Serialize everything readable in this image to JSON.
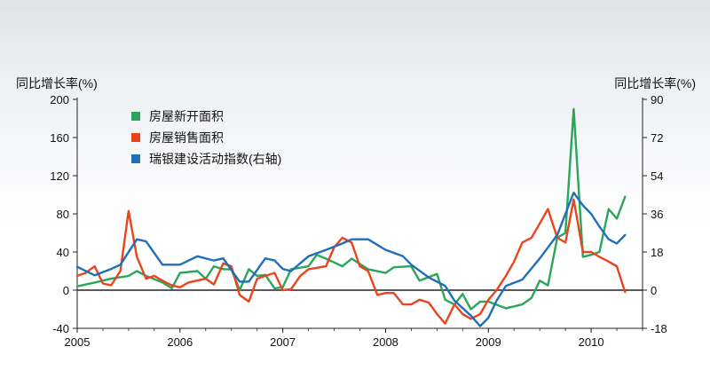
{
  "chart_data": {
    "type": "line",
    "left_axis_label": "同比增长率(%)",
    "right_axis_label": "同比增长率(%)",
    "left_ylim": [
      -40,
      200
    ],
    "left_yticks": [
      "200",
      "160",
      "120",
      "80",
      "40",
      "0",
      "-40"
    ],
    "right_ylim": [
      -18,
      90
    ],
    "right_yticks": [
      "90",
      "72",
      "54",
      "36",
      "18",
      "0",
      "-18"
    ],
    "x_range": [
      2005,
      2010.5
    ],
    "x_ticks": [
      {
        "value": 2005,
        "label": "2005"
      },
      {
        "value": 2006,
        "label": "2006"
      },
      {
        "value": 2007,
        "label": "2007"
      },
      {
        "value": 2008,
        "label": "2008"
      },
      {
        "value": 2009,
        "label": "2009"
      },
      {
        "value": 2010,
        "label": "2010"
      }
    ],
    "grid": false,
    "legend_position": "top-left",
    "series": [
      {
        "name": "房屋新开面积",
        "color": "#2aa55a",
        "axis": "left",
        "points": [
          [
            2005.0,
            4
          ],
          [
            2005.17,
            8
          ],
          [
            2005.33,
            12
          ],
          [
            2005.5,
            15
          ],
          [
            2005.58,
            20
          ],
          [
            2005.67,
            15
          ],
          [
            2005.83,
            8
          ],
          [
            2005.92,
            2
          ],
          [
            2006.0,
            18
          ],
          [
            2006.17,
            20
          ],
          [
            2006.25,
            12
          ],
          [
            2006.33,
            25
          ],
          [
            2006.42,
            22
          ],
          [
            2006.5,
            22
          ],
          [
            2006.58,
            0
          ],
          [
            2006.67,
            22
          ],
          [
            2006.75,
            15
          ],
          [
            2006.83,
            16
          ],
          [
            2006.92,
            2
          ],
          [
            2007.0,
            3
          ],
          [
            2007.08,
            22
          ],
          [
            2007.25,
            25
          ],
          [
            2007.33,
            37
          ],
          [
            2007.42,
            33
          ],
          [
            2007.58,
            25
          ],
          [
            2007.67,
            33
          ],
          [
            2007.83,
            22
          ],
          [
            2008.0,
            18
          ],
          [
            2008.08,
            24
          ],
          [
            2008.25,
            25
          ],
          [
            2008.33,
            10
          ],
          [
            2008.5,
            17
          ],
          [
            2008.58,
            -10
          ],
          [
            2008.67,
            -15
          ],
          [
            2008.75,
            -4
          ],
          [
            2008.83,
            -20
          ],
          [
            2008.92,
            -12
          ],
          [
            2009.0,
            -12
          ],
          [
            2009.17,
            -19
          ],
          [
            2009.25,
            -17
          ],
          [
            2009.33,
            -15
          ],
          [
            2009.42,
            -8
          ],
          [
            2009.5,
            10
          ],
          [
            2009.58,
            5
          ],
          [
            2009.67,
            55
          ],
          [
            2009.75,
            60
          ],
          [
            2009.83,
            190
          ],
          [
            2009.92,
            35
          ],
          [
            2010.0,
            37
          ],
          [
            2010.08,
            40
          ],
          [
            2010.17,
            85
          ],
          [
            2010.25,
            75
          ],
          [
            2010.33,
            98
          ]
        ]
      },
      {
        "name": "房屋销售面积",
        "color": "#e8441e",
        "axis": "left",
        "points": [
          [
            2005.0,
            15
          ],
          [
            2005.08,
            18
          ],
          [
            2005.17,
            25
          ],
          [
            2005.25,
            7
          ],
          [
            2005.33,
            5
          ],
          [
            2005.42,
            20
          ],
          [
            2005.5,
            83
          ],
          [
            2005.58,
            35
          ],
          [
            2005.67,
            12
          ],
          [
            2005.75,
            15
          ],
          [
            2005.83,
            10
          ],
          [
            2005.92,
            5
          ],
          [
            2006.0,
            3
          ],
          [
            2006.08,
            8
          ],
          [
            2006.25,
            12
          ],
          [
            2006.33,
            6
          ],
          [
            2006.42,
            28
          ],
          [
            2006.5,
            25
          ],
          [
            2006.58,
            -5
          ],
          [
            2006.67,
            -12
          ],
          [
            2006.75,
            12
          ],
          [
            2006.83,
            15
          ],
          [
            2006.92,
            18
          ],
          [
            2007.0,
            0
          ],
          [
            2007.08,
            1
          ],
          [
            2007.17,
            15
          ],
          [
            2007.25,
            22
          ],
          [
            2007.42,
            25
          ],
          [
            2007.5,
            45
          ],
          [
            2007.58,
            55
          ],
          [
            2007.67,
            50
          ],
          [
            2007.75,
            25
          ],
          [
            2007.83,
            20
          ],
          [
            2007.92,
            -5
          ],
          [
            2008.0,
            -3
          ],
          [
            2008.08,
            -3
          ],
          [
            2008.17,
            -15
          ],
          [
            2008.25,
            -15
          ],
          [
            2008.33,
            -10
          ],
          [
            2008.42,
            -13
          ],
          [
            2008.5,
            -25
          ],
          [
            2008.58,
            -35
          ],
          [
            2008.67,
            -15
          ],
          [
            2008.75,
            -25
          ],
          [
            2008.83,
            -30
          ],
          [
            2008.92,
            -25
          ],
          [
            2009.0,
            -10
          ],
          [
            2009.08,
            0
          ],
          [
            2009.17,
            15
          ],
          [
            2009.25,
            30
          ],
          [
            2009.33,
            50
          ],
          [
            2009.42,
            55
          ],
          [
            2009.5,
            70
          ],
          [
            2009.58,
            85
          ],
          [
            2009.67,
            55
          ],
          [
            2009.75,
            50
          ],
          [
            2009.83,
            95
          ],
          [
            2009.92,
            40
          ],
          [
            2010.0,
            40
          ],
          [
            2010.08,
            35
          ],
          [
            2010.17,
            30
          ],
          [
            2010.25,
            25
          ],
          [
            2010.33,
            -2
          ]
        ]
      },
      {
        "name": "瑞银建设活动指数(右轴)",
        "color": "#1f6fb8",
        "axis": "right",
        "points": [
          [
            2005.0,
            11
          ],
          [
            2005.17,
            7
          ],
          [
            2005.33,
            10
          ],
          [
            2005.42,
            12
          ],
          [
            2005.58,
            24
          ],
          [
            2005.67,
            23
          ],
          [
            2005.83,
            12
          ],
          [
            2006.0,
            12
          ],
          [
            2006.17,
            16
          ],
          [
            2006.33,
            14
          ],
          [
            2006.42,
            15
          ],
          [
            2006.58,
            4
          ],
          [
            2006.67,
            4
          ],
          [
            2006.83,
            15
          ],
          [
            2006.92,
            14
          ],
          [
            2007.0,
            10
          ],
          [
            2007.08,
            9
          ],
          [
            2007.25,
            16
          ],
          [
            2007.42,
            19
          ],
          [
            2007.58,
            22
          ],
          [
            2007.67,
            24
          ],
          [
            2007.83,
            24
          ],
          [
            2008.0,
            19
          ],
          [
            2008.17,
            16
          ],
          [
            2008.25,
            12
          ],
          [
            2008.42,
            6
          ],
          [
            2008.58,
            2
          ],
          [
            2008.67,
            -5
          ],
          [
            2008.83,
            -12
          ],
          [
            2008.92,
            -17
          ],
          [
            2009.0,
            -13
          ],
          [
            2009.08,
            -5
          ],
          [
            2009.17,
            2
          ],
          [
            2009.33,
            5
          ],
          [
            2009.5,
            15
          ],
          [
            2009.67,
            26
          ],
          [
            2009.83,
            46
          ],
          [
            2009.92,
            40
          ],
          [
            2010.0,
            36
          ],
          [
            2010.08,
            30
          ],
          [
            2010.17,
            24
          ],
          [
            2010.25,
            22
          ],
          [
            2010.33,
            26
          ]
        ]
      }
    ]
  }
}
